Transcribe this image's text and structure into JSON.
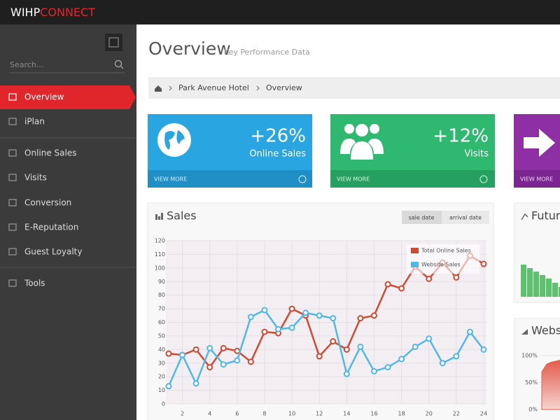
{
  "header": {
    "logo_a": "WIHP",
    "logo_b": "CONNECT"
  },
  "sidebar": {
    "search_placeholder": "Search...",
    "nav": [
      "Overview",
      "iPlan",
      "Online Sales",
      "Visits",
      "Conversion",
      "E-Reputation",
      "Guest Loyalty",
      "Tools"
    ]
  },
  "page": {
    "title": "Overview",
    "subtitle": "Key Performance Data"
  },
  "breadcrumb": [
    "Park Avenue Hotel",
    "Overview"
  ],
  "tiles": [
    {
      "value": "+26%",
      "label": "Online Sales",
      "link": "VIEW MORE"
    },
    {
      "value": "+12%",
      "label": "Visits",
      "link": "VIEW MORE"
    },
    {
      "link": "VIEW MORE"
    }
  ],
  "sales_panel": {
    "buttons": [
      "sale date",
      "arrival date"
    ]
  },
  "chart_data": [
    {
      "type": "line",
      "title": "Sales",
      "x": [
        1,
        2,
        3,
        4,
        5,
        6,
        7,
        8,
        9,
        10,
        11,
        12,
        13,
        14,
        15,
        16,
        17,
        18,
        19,
        20,
        21,
        22,
        23,
        24
      ],
      "xlim": [
        1,
        24
      ],
      "xticks": [
        2,
        4,
        6,
        8,
        10,
        12,
        14,
        16,
        18,
        20,
        22,
        24
      ],
      "ylim": [
        0,
        120
      ],
      "yticks": [
        0,
        10,
        20,
        30,
        40,
        50,
        60,
        70,
        80,
        90,
        100,
        110,
        120
      ],
      "grid": true,
      "legend": "top-right",
      "series": [
        {
          "name": "Total Online Sales",
          "color": "#cf4a32",
          "values": [
            37,
            36,
            40,
            27,
            41,
            39,
            31,
            53,
            52,
            70,
            65,
            35,
            46,
            40,
            63,
            65,
            88,
            85,
            101,
            92,
            104,
            93,
            109,
            103
          ]
        },
        {
          "name": "Website Sales",
          "color": "#4fb8e6",
          "values": [
            13,
            36,
            15,
            41,
            29,
            32,
            64,
            69,
            55,
            56,
            67,
            65,
            63,
            22,
            42,
            24,
            27,
            33,
            42,
            48,
            30,
            35,
            53,
            40
          ]
        }
      ]
    },
    {
      "type": "bar",
      "title": "Futur",
      "values": [
        46,
        41,
        36,
        31,
        26,
        20,
        14
      ],
      "color": "#5cc26c",
      "ylim": [
        0,
        50
      ]
    },
    {
      "type": "area",
      "title": "Webs",
      "values": [
        70,
        84,
        88,
        90,
        92
      ],
      "color": "#e35a4c",
      "ylim": [
        0,
        100
      ],
      "yticks": [
        {
          "value": 100,
          "label": "100%"
        },
        {
          "value": 50,
          "label": "50%"
        },
        {
          "value": 0,
          "label": "0%"
        }
      ]
    }
  ]
}
